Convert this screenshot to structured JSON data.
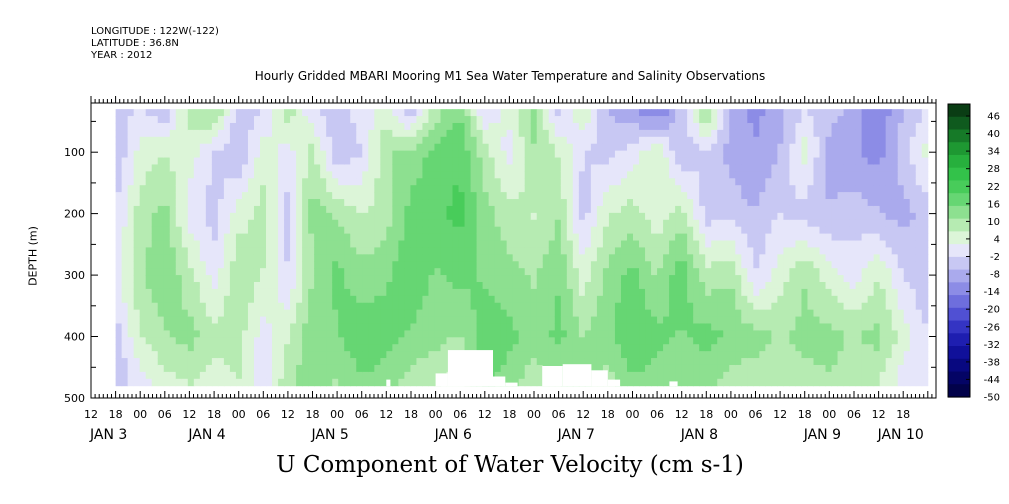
{
  "header": {
    "longitude": "LONGITUDE : 122W(-122)",
    "latitude": "LATITUDE : 36.8N",
    "year": "YEAR : 2012"
  },
  "chart_data": {
    "type": "heatmap",
    "title": "Hourly Gridded MBARI Mooring M1 Sea Water Temperature and Salinity Observations",
    "xlabel": "U Component of Water Velocity (cm s-1)",
    "ylabel": "DEPTH (m)",
    "y_axis": {
      "range": [
        20,
        500
      ],
      "reversed": true,
      "ticks": [
        100,
        200,
        300,
        400,
        500
      ],
      "tick_labels": [
        "100",
        "200",
        "300",
        "400",
        "500"
      ]
    },
    "x_axis": {
      "range_hours": [
        -12,
        194
      ],
      "hour_ticks": [
        -12,
        -6,
        0,
        6,
        12,
        18,
        24,
        30,
        36,
        42,
        48,
        54,
        60,
        66,
        72,
        78,
        84,
        90,
        96,
        102,
        108,
        114,
        120,
        126,
        132,
        138,
        144,
        150,
        156,
        162,
        168,
        174,
        180,
        186
      ],
      "hour_tick_labels": [
        "12",
        "18",
        "00",
        "06",
        "12",
        "18",
        "00",
        "06",
        "12",
        "18",
        "00",
        "06",
        "12",
        "18",
        "00",
        "06",
        "12",
        "18",
        "00",
        "06",
        "12",
        "18",
        "00",
        "06",
        "12",
        "18",
        "00",
        "06",
        "12",
        "18",
        "00",
        "06",
        "12",
        "18"
      ],
      "day_labels": [
        {
          "text": "JAN 3",
          "hour": -12
        },
        {
          "text": "JAN 4",
          "hour": 12
        },
        {
          "text": "JAN 5",
          "hour": 42
        },
        {
          "text": "JAN 6",
          "hour": 72
        },
        {
          "text": "JAN 7",
          "hour": 102
        },
        {
          "text": "JAN 8",
          "hour": 132
        },
        {
          "text": "JAN 9",
          "hour": 162
        },
        {
          "text": "JAN 10",
          "hour": 180
        }
      ]
    },
    "colorbar": {
      "labels": [
        "46",
        "40",
        "34",
        "28",
        "22",
        "16",
        "10",
        "4",
        "-2",
        "-8",
        "-14",
        "-20",
        "-26",
        "-32",
        "-38",
        "-44",
        "-50"
      ],
      "colors": [
        "#0a3d14",
        "#0f5a1e",
        "#167a28",
        "#1e9832",
        "#27b03d",
        "#33c24a",
        "#48cc5a",
        "#66d673",
        "#8de090",
        "#b6ebb2",
        "#dcf5d8",
        "#e6e6fa",
        "#c8c8f3",
        "#aaaaed",
        "#8c8ce6",
        "#6e6edd",
        "#5050d3",
        "#3434c3",
        "#1e1eb0",
        "#10109a",
        "#080880",
        "#040465",
        "#02024a"
      ]
    },
    "field": {
      "x_hours": [
        -6,
        0,
        6,
        12,
        18,
        24,
        30,
        36,
        42,
        48,
        54,
        60,
        66,
        72,
        78,
        84,
        90,
        96,
        102,
        108,
        114,
        120,
        126,
        132,
        138,
        144,
        150,
        156,
        162,
        168,
        174,
        180,
        186,
        192
      ],
      "depth_m": [
        30,
        100,
        200,
        300,
        400,
        480
      ],
      "u_cm_s": [
        [
          -6,
          -8,
          -4,
          -2,
          -6,
          -8
        ],
        [
          -4,
          2,
          6,
          8,
          4,
          -2
        ],
        [
          -8,
          4,
          10,
          12,
          8,
          2
        ],
        [
          6,
          2,
          -2,
          6,
          10,
          4
        ],
        [
          10,
          -4,
          -6,
          -2,
          6,
          2
        ],
        [
          -6,
          -8,
          2,
          8,
          6,
          4
        ],
        [
          -4,
          2,
          6,
          4,
          -2,
          -4
        ],
        [
          8,
          -2,
          -6,
          -4,
          4,
          8
        ],
        [
          -4,
          6,
          10,
          8,
          12,
          10
        ],
        [
          -6,
          -8,
          8,
          14,
          12,
          8
        ],
        [
          -2,
          -4,
          4,
          10,
          16,
          12
        ],
        [
          2,
          8,
          6,
          12,
          14,
          10
        ],
        [
          -8,
          10,
          14,
          16,
          12,
          6
        ],
        [
          6,
          14,
          16,
          12,
          10,
          4
        ],
        [
          12,
          16,
          18,
          14,
          8,
          2
        ],
        [
          -4,
          6,
          10,
          12,
          16,
          14
        ],
        [
          2,
          -2,
          6,
          10,
          14,
          10
        ],
        [
          10,
          8,
          4,
          8,
          10,
          6
        ],
        [
          -6,
          4,
          8,
          12,
          14,
          8
        ],
        [
          4,
          -4,
          -6,
          2,
          8,
          10
        ],
        [
          -8,
          -6,
          4,
          10,
          12,
          6
        ],
        [
          -12,
          -2,
          6,
          14,
          16,
          12
        ],
        [
          -18,
          4,
          2,
          8,
          14,
          10
        ],
        [
          -6,
          -8,
          6,
          16,
          12,
          8
        ],
        [
          10,
          -4,
          -6,
          6,
          14,
          10
        ],
        [
          -8,
          -10,
          -6,
          8,
          12,
          6
        ],
        [
          -14,
          -12,
          -8,
          -4,
          10,
          6
        ],
        [
          -10,
          -8,
          -4,
          2,
          8,
          4
        ],
        [
          -4,
          2,
          -6,
          8,
          10,
          6
        ],
        [
          -6,
          -10,
          -8,
          2,
          10,
          8
        ],
        [
          -10,
          -12,
          -6,
          -2,
          8,
          6
        ],
        [
          -16,
          -14,
          -8,
          4,
          10,
          4
        ],
        [
          -8,
          -6,
          -10,
          -4,
          2,
          -2
        ],
        [
          -4,
          2,
          -6,
          -8,
          -4,
          -2
        ]
      ]
    },
    "missing_bottom": [
      {
        "hour_start": 60,
        "hour_end": 61,
        "depth_top": 470
      },
      {
        "hour_start": 72,
        "hour_end": 75,
        "depth_top": 460
      },
      {
        "hour_start": 75,
        "hour_end": 86,
        "depth_top": 422
      },
      {
        "hour_start": 86,
        "hour_end": 89,
        "depth_top": 465
      },
      {
        "hour_start": 89,
        "hour_end": 92,
        "depth_top": 475
      },
      {
        "hour_start": 98,
        "hour_end": 103,
        "depth_top": 448
      },
      {
        "hour_start": 103,
        "hour_end": 110,
        "depth_top": 445
      },
      {
        "hour_start": 110,
        "hour_end": 114,
        "depth_top": 455
      },
      {
        "hour_start": 114,
        "hour_end": 117,
        "depth_top": 470
      },
      {
        "hour_start": 129,
        "hour_end": 131,
        "depth_top": 473
      }
    ]
  }
}
